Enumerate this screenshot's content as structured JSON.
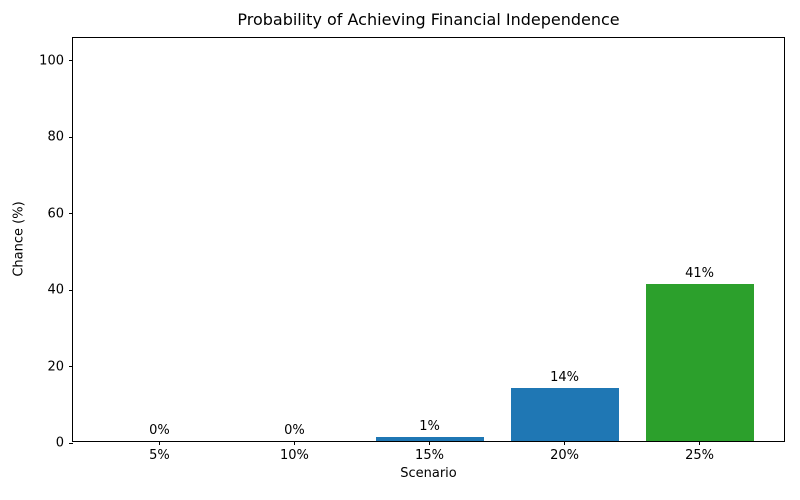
{
  "chart_data": {
    "type": "bar",
    "title": "Probability of Achieving Financial Independence",
    "xlabel": "Scenario",
    "ylabel": "Chance (%)",
    "categories": [
      "5%",
      "10%",
      "15%",
      "20%",
      "25%"
    ],
    "values": [
      0,
      0,
      1,
      14,
      41
    ],
    "bar_labels": [
      "0%",
      "0%",
      "1%",
      "14%",
      "41%"
    ],
    "bar_colors": [
      "#1f77b4",
      "#1f77b4",
      "#1f77b4",
      "#1f77b4",
      "#2ca02c"
    ],
    "yticks": [
      0,
      20,
      40,
      60,
      80,
      100
    ],
    "ylim": [
      0,
      106
    ],
    "grid": false,
    "legend_position": "none",
    "axis_color": "#000000",
    "background_color": "#ffffff"
  }
}
